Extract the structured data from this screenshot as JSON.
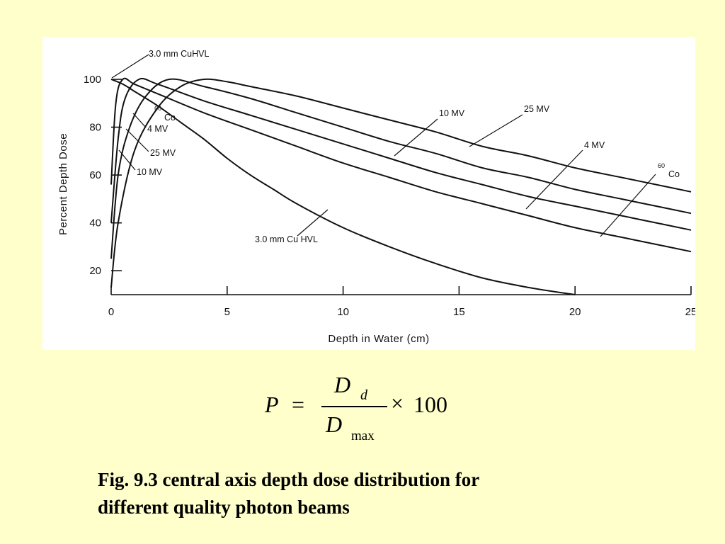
{
  "chart_data": {
    "type": "line",
    "title": "",
    "xlabel": "Depth in Water (cm)",
    "ylabel": "Percent  Depth Dose",
    "xlim": [
      0,
      25
    ],
    "ylim": [
      10,
      100
    ],
    "x_ticks": [
      "0",
      "5",
      "10",
      "15",
      "20",
      "25"
    ],
    "y_ticks": [
      "100",
      "80",
      "60",
      "40",
      "20"
    ],
    "grid": false,
    "series": [
      {
        "name": "3.0 mm Cu HVL",
        "x": [
          0,
          0.5,
          1,
          2,
          3,
          4,
          5,
          6,
          7,
          8,
          10,
          12,
          14,
          16,
          18,
          20
        ],
        "y": [
          100,
          98,
          95,
          89,
          82,
          75,
          67,
          60,
          54,
          48,
          38,
          30,
          23,
          17,
          13,
          10
        ]
      },
      {
        "name": "60 Co",
        "x": [
          0,
          0.2,
          0.5,
          1,
          2,
          4,
          6,
          8,
          10,
          12,
          14,
          16,
          18,
          20,
          22,
          24,
          25
        ],
        "y": [
          56,
          90,
          100,
          98,
          94,
          86,
          79,
          72,
          65,
          59,
          53,
          48,
          43,
          38,
          34,
          30,
          28
        ]
      },
      {
        "name": "4 MV",
        "x": [
          0,
          0.3,
          0.6,
          1.2,
          2,
          4,
          6,
          8,
          10,
          12,
          14,
          16,
          18,
          20,
          22,
          24,
          25
        ],
        "y": [
          40,
          75,
          92,
          100,
          98,
          91,
          85,
          79,
          73,
          67,
          61,
          56,
          51,
          47,
          43,
          39,
          37
        ]
      },
      {
        "name": "10 MV",
        "x": [
          0,
          0.3,
          0.8,
          1.5,
          2.5,
          4,
          6,
          8,
          10,
          12,
          14,
          16,
          18,
          20,
          22,
          24,
          25
        ],
        "y": [
          25,
          60,
          80,
          93,
          100,
          97,
          92,
          86,
          80,
          74,
          69,
          63,
          59,
          54,
          50,
          46,
          44
        ]
      },
      {
        "name": "25 MV",
        "x": [
          0,
          0.3,
          1,
          2,
          3,
          4,
          5,
          6,
          8,
          10,
          12,
          14,
          16,
          18,
          20,
          22,
          24,
          25
        ],
        "y": [
          13,
          40,
          70,
          88,
          97,
          100,
          99,
          97,
          93,
          88,
          83,
          78,
          72,
          68,
          63,
          59,
          55,
          53
        ]
      }
    ],
    "annotations": [
      {
        "text": "3.0 mm CuHVL"
      },
      {
        "text": "60",
        "sup_of": "Co"
      },
      {
        "text": "Co"
      },
      {
        "text": "4 MV"
      },
      {
        "text": "25 MV"
      },
      {
        "text": "10 MV"
      },
      {
        "text": "3.0 mm Cu HVL"
      },
      {
        "text": "10 MV"
      },
      {
        "text": "25 MV"
      },
      {
        "text": "4 MV"
      },
      {
        "text": "60",
        "sup_of": "Co"
      },
      {
        "text": "Co"
      }
    ]
  },
  "formula": {
    "lhs": "P",
    "equals": "=",
    "numerator": "D",
    "numerator_sub": "d",
    "denominator": "D",
    "denominator_sub": "max",
    "times": "×",
    "factor": "100"
  },
  "caption": {
    "line1": "Fig. 9.3 central axis depth dose distribution for",
    "line2": "different quality photon beams"
  }
}
